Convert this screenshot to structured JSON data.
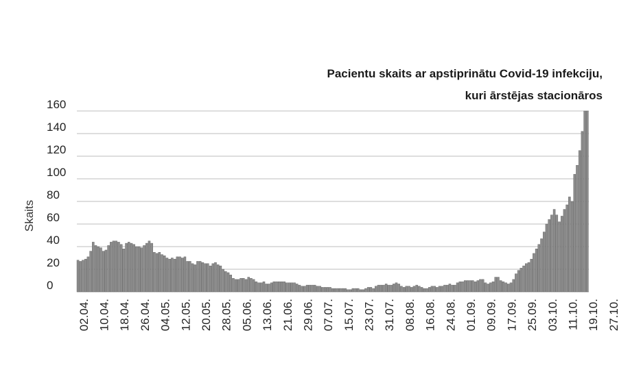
{
  "chart_data": {
    "type": "bar",
    "title": "Pacientu skaits ar apstiprinātu Covid-19 infekciju, kuri ārstējas stacionāros",
    "title_lines": [
      "Pacientu skaits ar apstiprinātu Covid-19 infekciju,",
      "kuri ārstējas stacionāros"
    ],
    "xlabel": "",
    "ylabel": "Skaits",
    "ylim": [
      0,
      160
    ],
    "yticks": [
      0,
      20,
      40,
      60,
      80,
      100,
      120,
      140,
      160
    ],
    "grid": true,
    "bar_color": "#8c8c8c",
    "bar_edge_color": "#5a5a5a",
    "x_tick_labels": [
      "02.04.",
      "10.04.",
      "18.04.",
      "26.04.",
      "04.05.",
      "12.05.",
      "20.05.",
      "28.05.",
      "05.06.",
      "13.06.",
      "21.06.",
      "29.06.",
      "07.07.",
      "15.07.",
      "23.07.",
      "31.07.",
      "08.08.",
      "16.08.",
      "24.08.",
      "01.09.",
      "09.09.",
      "17.09.",
      "25.09.",
      "03.10.",
      "11.10.",
      "19.10.",
      "27.10."
    ],
    "x_tick_every": 8,
    "values": [
      28,
      27,
      28,
      29,
      31,
      36,
      44,
      41,
      40,
      39,
      36,
      37,
      41,
      44,
      45,
      45,
      44,
      42,
      38,
      43,
      44,
      43,
      42,
      40,
      40,
      39,
      41,
      43,
      45,
      43,
      35,
      34,
      35,
      33,
      32,
      30,
      29,
      30,
      29,
      31,
      31,
      30,
      31,
      27,
      27,
      25,
      24,
      27,
      27,
      26,
      25,
      25,
      23,
      25,
      26,
      24,
      23,
      20,
      18,
      17,
      15,
      12,
      11,
      11,
      12,
      12,
      11,
      13,
      12,
      11,
      9,
      8,
      8,
      9,
      7,
      7,
      8,
      9,
      9,
      9,
      9,
      9,
      8,
      8,
      8,
      8,
      7,
      6,
      5,
      5,
      6,
      6,
      6,
      6,
      5,
      5,
      4,
      4,
      4,
      4,
      3,
      3,
      3,
      3,
      3,
      3,
      2,
      2,
      3,
      3,
      3,
      2,
      2,
      3,
      4,
      4,
      3,
      5,
      6,
      6,
      6,
      7,
      6,
      6,
      7,
      8,
      7,
      5,
      4,
      5,
      5,
      4,
      5,
      6,
      5,
      4,
      3,
      3,
      4,
      5,
      5,
      4,
      5,
      5,
      6,
      6,
      7,
      6,
      6,
      8,
      9,
      9,
      10,
      10,
      10,
      10,
      9,
      10,
      11,
      11,
      8,
      7,
      8,
      9,
      13,
      13,
      10,
      9,
      8,
      7,
      8,
      11,
      16,
      19,
      21,
      23,
      25,
      26,
      29,
      34,
      38,
      42,
      47,
      53,
      60,
      64,
      68,
      73,
      68,
      62,
      67,
      73,
      77,
      84,
      80,
      104,
      112,
      125,
      142,
      160,
      165
    ]
  }
}
